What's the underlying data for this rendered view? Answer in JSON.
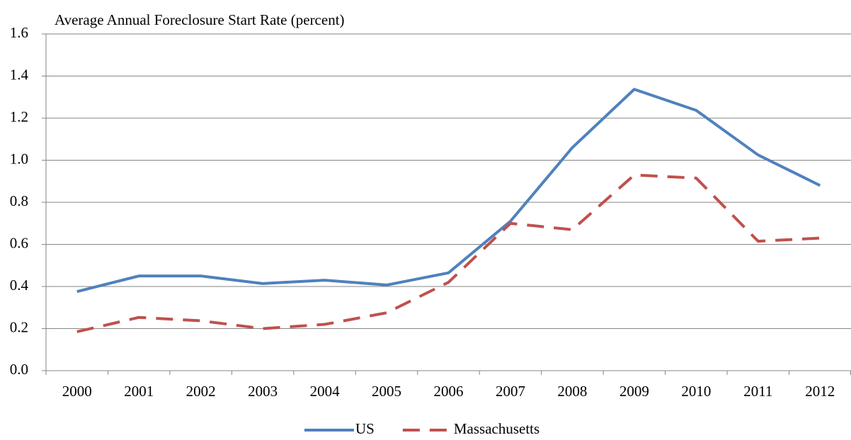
{
  "chart_data": {
    "type": "line",
    "title": "Average Annual Foreclosure Start Rate (percent)",
    "categories": [
      "2000",
      "2001",
      "2002",
      "2003",
      "2004",
      "2005",
      "2006",
      "2007",
      "2008",
      "2009",
      "2010",
      "2011",
      "2012"
    ],
    "series": [
      {
        "name": "US",
        "color": "#4f81bd",
        "dash": false,
        "values": [
          0.376,
          0.45,
          0.45,
          0.414,
          0.43,
          0.407,
          0.465,
          0.71,
          1.06,
          1.337,
          1.237,
          1.025,
          0.88
        ]
      },
      {
        "name": "Massachusetts",
        "color": "#c0504d",
        "dash": true,
        "values": [
          0.185,
          0.253,
          0.237,
          0.2,
          0.22,
          0.275,
          0.42,
          0.7,
          0.67,
          0.93,
          0.915,
          0.615,
          0.63
        ]
      }
    ],
    "ylim": [
      0,
      1.6
    ],
    "yticks": [
      {
        "value": 0,
        "label": "0.0"
      },
      0.2,
      0.4,
      0.6,
      0.8,
      {
        "value": 1,
        "label": "1.0"
      },
      1.2,
      1.4,
      1.6
    ],
    "grid": true,
    "legend": "bottom"
  }
}
